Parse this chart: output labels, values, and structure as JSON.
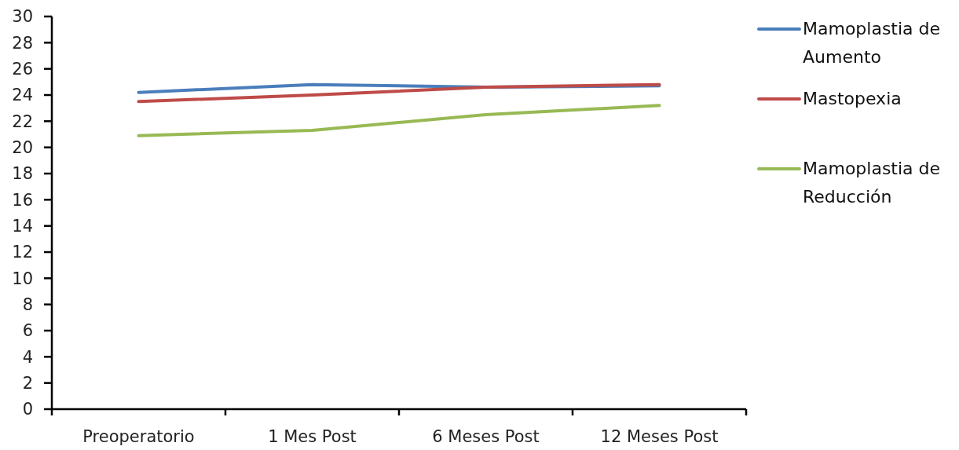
{
  "chart_data": {
    "type": "line",
    "categories": [
      "Preoperatorio",
      "1 Mes Post",
      "6 Meses Post",
      "12 Meses Post"
    ],
    "series": [
      {
        "name": "Mamoplastia de Aumento",
        "color": "#4a7ebb",
        "values": [
          24.2,
          24.8,
          24.6,
          24.7
        ]
      },
      {
        "name": "Mastopexia",
        "color": "#be4b48",
        "values": [
          23.5,
          24.0,
          24.6,
          24.8
        ]
      },
      {
        "name": "Mamoplastia de Reducción",
        "color": "#98b954",
        "values": [
          20.9,
          21.3,
          22.5,
          23.2
        ]
      }
    ],
    "ylim": [
      0,
      30
    ],
    "yticks": [
      0,
      2,
      4,
      6,
      8,
      10,
      12,
      14,
      16,
      18,
      20,
      22,
      24,
      26,
      28,
      30
    ],
    "legend": "right",
    "marker": "none",
    "line_style": "solid"
  }
}
